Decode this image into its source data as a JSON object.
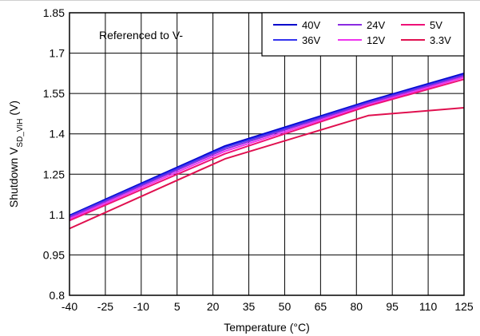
{
  "chart_data": {
    "type": "line",
    "title": "",
    "xlabel": "Temperature (°C)",
    "ylabel_main": "Shutdown V",
    "ylabel_sub": "SD_VIH",
    "ylabel_unit": " (V)",
    "annotation": "Referenced to V-",
    "xlim": [
      -40,
      125
    ],
    "ylim": [
      0.8,
      1.85
    ],
    "x_ticks": [
      "-40",
      "-25",
      "-10",
      "5",
      "20",
      "35",
      "50",
      "65",
      "80",
      "95",
      "110",
      "125"
    ],
    "y_ticks": [
      "0.8",
      "0.95",
      "1.1",
      "1.25",
      "1.4",
      "1.55",
      "1.7",
      "1.85"
    ],
    "grid": true,
    "legend_position": "top-right",
    "x": [
      -40,
      25,
      85,
      125
    ],
    "series": [
      {
        "name": "40V",
        "color": "#0000cc",
        "values": [
          1.097,
          1.355,
          1.522,
          1.625
        ]
      },
      {
        "name": "36V",
        "color": "#3333ee",
        "values": [
          1.094,
          1.35,
          1.518,
          1.62
        ]
      },
      {
        "name": "24V",
        "color": "#8a2be2",
        "values": [
          1.09,
          1.343,
          1.514,
          1.616
        ]
      },
      {
        "name": "12V",
        "color": "#ee33ee",
        "values": [
          1.084,
          1.335,
          1.508,
          1.61
        ]
      },
      {
        "name": "5V",
        "color": "#ee1177",
        "values": [
          1.078,
          1.326,
          1.504,
          1.603
        ]
      },
      {
        "name": "3.3V",
        "color": "#e0104f",
        "values": [
          1.048,
          1.307,
          1.468,
          1.497
        ]
      }
    ]
  }
}
